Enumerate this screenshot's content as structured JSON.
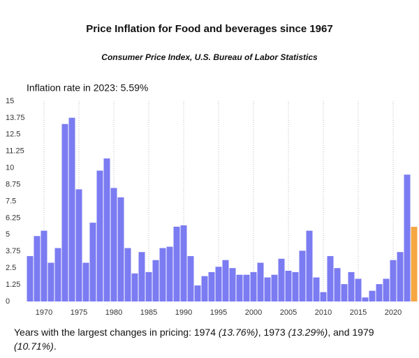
{
  "chart_data": {
    "type": "bar",
    "title": "Price Inflation for Food and beverages since 1967",
    "subtitle": "Consumer Price Index, U.S. Bureau of Labor Statistics",
    "annotation": "Inflation rate in 2023: 5.59%",
    "x": [
      1968,
      1969,
      1970,
      1971,
      1972,
      1973,
      1974,
      1975,
      1976,
      1977,
      1978,
      1979,
      1980,
      1981,
      1982,
      1983,
      1984,
      1985,
      1986,
      1987,
      1988,
      1989,
      1990,
      1991,
      1992,
      1993,
      1994,
      1995,
      1996,
      1997,
      1998,
      1999,
      2000,
      2001,
      2002,
      2003,
      2004,
      2005,
      2006,
      2007,
      2008,
      2009,
      2010,
      2011,
      2012,
      2013,
      2014,
      2015,
      2016,
      2017,
      2018,
      2019,
      2020,
      2021,
      2022,
      2023
    ],
    "values": [
      3.4,
      4.9,
      5.3,
      2.9,
      4.0,
      13.29,
      13.76,
      8.4,
      2.9,
      5.9,
      9.8,
      10.71,
      8.5,
      7.8,
      4.0,
      2.1,
      3.7,
      2.2,
      3.1,
      4.0,
      4.1,
      5.6,
      5.7,
      3.4,
      1.2,
      1.9,
      2.2,
      2.6,
      3.1,
      2.5,
      2.0,
      2.0,
      2.2,
      2.9,
      1.8,
      2.0,
      3.2,
      2.3,
      2.2,
      3.8,
      5.3,
      1.8,
      0.7,
      3.4,
      2.5,
      1.3,
      2.2,
      1.7,
      0.3,
      0.8,
      1.3,
      1.7,
      3.1,
      3.7,
      9.5,
      5.59
    ],
    "color": "#7b7bf2",
    "highlight_color": "#f5a742",
    "highlight_index": 55,
    "xlim": [
      1967.5,
      2023.5
    ],
    "xticks": [
      1970,
      1975,
      1980,
      1985,
      1990,
      1995,
      2000,
      2005,
      2010,
      2015,
      2020
    ],
    "ylim": [
      0,
      15
    ],
    "yticks": [
      0,
      1.25,
      2.5,
      3.75,
      5,
      6.25,
      7.5,
      8.75,
      10,
      11.25,
      12.5,
      13.75,
      15
    ],
    "grid": "x",
    "footer": [
      {
        "text": "Years with the largest changes in pricing: 1974 ",
        "italic": false
      },
      {
        "text": "(13.76%)",
        "italic": true
      },
      {
        "text": ", 1973 ",
        "italic": false
      },
      {
        "text": "(13.29%)",
        "italic": true
      },
      {
        "text": ", and 1979 ",
        "italic": false
      },
      {
        "text": "(10.71%)",
        "italic": true
      },
      {
        "text": ".",
        "italic": false
      }
    ]
  }
}
